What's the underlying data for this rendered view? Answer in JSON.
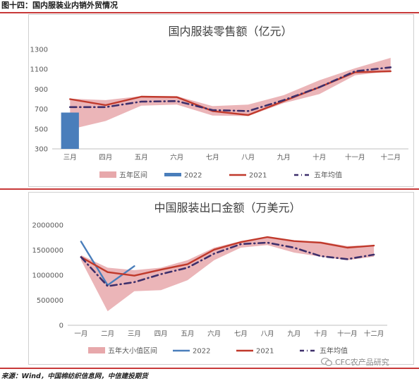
{
  "header": {
    "title": "图十四：国内服装业内销外贸情况"
  },
  "footer": {
    "source": "来源：Wind，中国棉纺织信息网，中信建投期货"
  },
  "watermark": {
    "text": "CFC农产品研究"
  },
  "colors": {
    "rule": "#c83a3a",
    "band": "#e7a8ab",
    "s2022": "#4a7ebb",
    "s2021": "#c0392b",
    "avg": "#3d2f6b"
  },
  "chart_data": [
    {
      "type": "line",
      "title": "国内服装零售额（亿元）",
      "categories": [
        "三月",
        "四月",
        "五月",
        "六月",
        "七月",
        "八月",
        "九月",
        "十月",
        "十一月",
        "十二月"
      ],
      "ylim": [
        300,
        1300
      ],
      "yticks": [
        300,
        500,
        700,
        900,
        1100,
        1300
      ],
      "grid": false,
      "legend_position": "bottom",
      "band": {
        "name": "五年区间",
        "low": [
          495,
          580,
          735,
          745,
          635,
          630,
          760,
          850,
          1040,
          1080
        ],
        "high": [
          805,
          790,
          830,
          830,
          730,
          745,
          840,
          990,
          1110,
          1215
        ]
      },
      "series": [
        {
          "name": "2022",
          "kind": "bar",
          "values": [
            665,
            null,
            null,
            null,
            null,
            null,
            null,
            null,
            null,
            null
          ]
        },
        {
          "name": "2021",
          "kind": "line",
          "values": [
            800,
            740,
            825,
            820,
            680,
            640,
            780,
            920,
            1070,
            1080
          ]
        },
        {
          "name": "五年均值",
          "kind": "dashdot",
          "values": [
            720,
            720,
            775,
            780,
            690,
            680,
            790,
            920,
            1080,
            1120
          ]
        }
      ]
    },
    {
      "type": "line",
      "title": "中国服装出口金额（万美元）",
      "categories": [
        "一月",
        "二月",
        "三月",
        "四月",
        "五月",
        "六月",
        "七月",
        "八月",
        "九月",
        "十月",
        "十一月",
        "十二月"
      ],
      "ylim": [
        0,
        2000000
      ],
      "yticks": [
        0,
        500000,
        1000000,
        1500000,
        2000000
      ],
      "grid": false,
      "legend_position": "bottom",
      "band": {
        "name": "五年大小值区间",
        "low": [
          1300000,
          280000,
          680000,
          700000,
          900000,
          1300000,
          1550000,
          1600000,
          1450000,
          1370000,
          1300000,
          1370000
        ],
        "high": [
          1400000,
          1150000,
          1100000,
          1150000,
          1300000,
          1550000,
          1680000,
          1760000,
          1680000,
          1670000,
          1580000,
          1600000
        ]
      },
      "series": [
        {
          "name": "2022",
          "kind": "line",
          "values": [
            1670000,
            800000,
            1180000,
            null,
            null,
            null,
            null,
            null,
            null,
            null,
            null,
            null
          ]
        },
        {
          "name": "2021",
          "kind": "line",
          "values": [
            1360000,
            1060000,
            990000,
            1110000,
            1220000,
            1510000,
            1660000,
            1760000,
            1680000,
            1650000,
            1550000,
            1590000
          ]
        },
        {
          "name": "五年均值",
          "kind": "dashdot",
          "values": [
            1360000,
            780000,
            860000,
            1020000,
            1150000,
            1430000,
            1620000,
            1650000,
            1550000,
            1380000,
            1320000,
            1410000
          ]
        }
      ]
    }
  ]
}
